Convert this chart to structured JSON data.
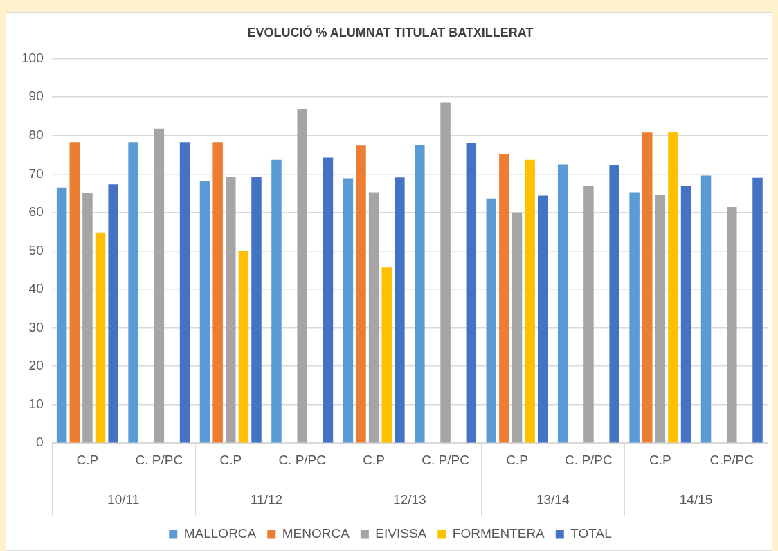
{
  "chart_data": {
    "type": "bar",
    "title": "EVOLUCIÓ % ALUMNAT TITULAT BATXILLERAT",
    "categories": [
      "C.P",
      "C. P/PC",
      "C.P",
      "C. P/PC",
      "C.P",
      "C. P/PC",
      "C.P",
      "C. P/PC",
      "C.P",
      "C.P/PC"
    ],
    "annotations": [
      "10/11",
      "11/12",
      "12/13",
      "13/14",
      "14/15"
    ],
    "series": [
      {
        "name": "MALLORCA",
        "color": "#5b9bd5",
        "values": [
          66.5,
          78.3,
          68.2,
          73.7,
          68.9,
          77.5,
          63.6,
          72.5,
          65.1,
          69.6
        ]
      },
      {
        "name": "MENORCA",
        "color": "#ed7d31",
        "values": [
          78.3,
          null,
          78.3,
          null,
          77.4,
          null,
          75.2,
          null,
          80.8,
          null
        ]
      },
      {
        "name": "EIVISSA",
        "color": "#a5a5a5",
        "values": [
          65,
          81.8,
          69.3,
          86.8,
          65.1,
          88.5,
          60,
          67,
          64.5,
          61.4
        ]
      },
      {
        "name": "FORMENTERA",
        "color": "#ffc000",
        "values": [
          54.8,
          null,
          50,
          null,
          45.7,
          null,
          73.7,
          null,
          80.9,
          null
        ]
      },
      {
        "name": "TOTAL",
        "color": "#4472c4",
        "values": [
          67.3,
          78.3,
          69.2,
          74.3,
          69.1,
          78.1,
          64.4,
          72.3,
          66.8,
          69
        ]
      }
    ],
    "ylim": [
      0,
      100
    ],
    "yticks": [
      0,
      10,
      20,
      30,
      40,
      50,
      60,
      70,
      80,
      90,
      100
    ],
    "grid": "y",
    "legend": "bottom"
  }
}
